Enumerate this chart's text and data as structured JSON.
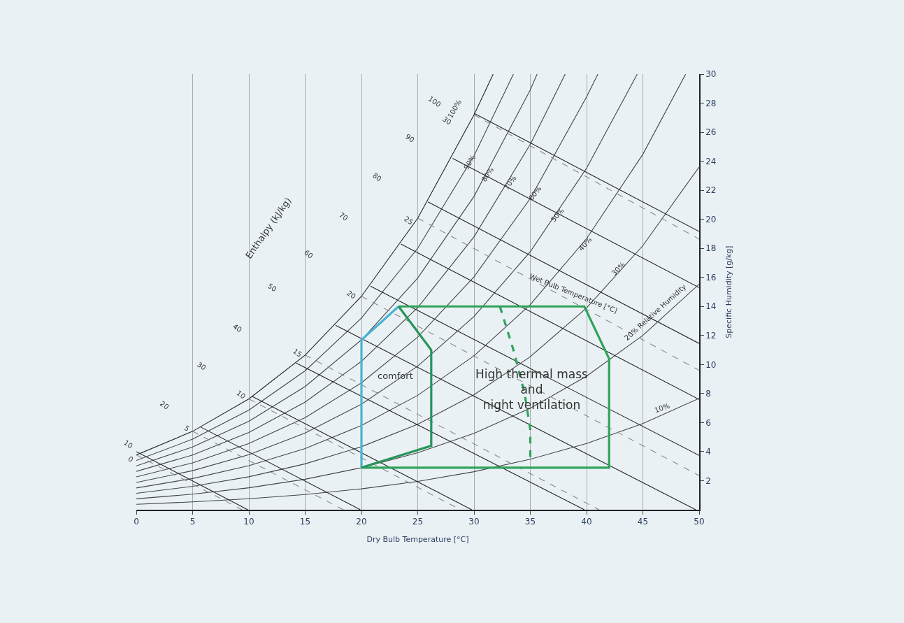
{
  "chart_data": {
    "type": "line",
    "xlabel": "Dry Bulb Temperature [°C]",
    "ylabel": "Specific Humidity [g/kg]",
    "xlim": [
      0,
      50
    ],
    "xticks": [
      0,
      5,
      10,
      15,
      20,
      25,
      30,
      35,
      40,
      45,
      50
    ],
    "ylim": [
      0,
      30
    ],
    "yticks": [
      2,
      4,
      6,
      8,
      10,
      12,
      14,
      16,
      18,
      20,
      22,
      24,
      26,
      28,
      30
    ],
    "grid": "x",
    "marker": "none",
    "series": [
      {
        "color": "#222222",
        "x": [
          0,
          5,
          10,
          15,
          20,
          25,
          30,
          31.7
        ],
        "values": [
          3.77,
          5.4,
          7.63,
          10.65,
          14.7,
          20.08,
          27.2,
          30.0
        ]
      },
      {
        "color": "#444444",
        "x": [
          0,
          5,
          10,
          15,
          20,
          25,
          30,
          33.5
        ],
        "values": [
          3.39,
          4.86,
          6.86,
          9.57,
          13.2,
          18.01,
          24.38,
          30.0
        ]
      },
      {
        "color": "#444444",
        "x": [
          0,
          5,
          10,
          15,
          20,
          25,
          30,
          35,
          35.6
        ],
        "values": [
          3.02,
          4.32,
          6.09,
          8.49,
          11.7,
          15.96,
          21.58,
          28.92,
          30.0
        ]
      },
      {
        "color": "#444444",
        "x": [
          0,
          5,
          10,
          15,
          20,
          25,
          30,
          35,
          38.1
        ],
        "values": [
          2.64,
          3.77,
          5.32,
          7.42,
          10.22,
          13.92,
          18.8,
          25.17,
          30.0
        ]
      },
      {
        "color": "#444444",
        "x": [
          0,
          5,
          10,
          15,
          20,
          25,
          30,
          35,
          40,
          41.0
        ],
        "values": [
          2.26,
          3.23,
          4.56,
          6.34,
          8.74,
          11.89,
          16.04,
          21.44,
          28.44,
          30.0
        ]
      },
      {
        "color": "#444444",
        "x": [
          0,
          5,
          10,
          15,
          20,
          25,
          30,
          35,
          40,
          44.5
        ],
        "values": [
          1.88,
          2.69,
          3.79,
          5.28,
          7.27,
          9.89,
          13.31,
          17.77,
          23.52,
          30.0
        ]
      },
      {
        "color": "#444444",
        "x": [
          0,
          5,
          10,
          15,
          20,
          25,
          30,
          35,
          40,
          45,
          48.8
        ],
        "values": [
          1.5,
          2.15,
          3.03,
          4.21,
          5.8,
          7.88,
          10.6,
          14.13,
          18.67,
          24.48,
          30.0
        ]
      },
      {
        "color": "#444444",
        "x": [
          0,
          5,
          10,
          15,
          20,
          25,
          30,
          35,
          40,
          45,
          50
        ],
        "values": [
          1.13,
          1.61,
          2.27,
          3.16,
          4.34,
          5.89,
          7.92,
          10.54,
          13.9,
          18.19,
          23.61
        ]
      },
      {
        "color": "#444444",
        "x": [
          0,
          5,
          10,
          15,
          20,
          25,
          30,
          35,
          40,
          45,
          50
        ],
        "values": [
          0.75,
          1.07,
          1.51,
          2.1,
          2.89,
          3.92,
          5.26,
          6.99,
          9.2,
          12.01,
          15.54
        ]
      },
      {
        "color": "#444444",
        "x": [
          0,
          5,
          10,
          15,
          20,
          25,
          30,
          35,
          40,
          45,
          50
        ],
        "values": [
          0.37,
          0.54,
          0.76,
          1.05,
          1.44,
          1.95,
          2.62,
          3.48,
          4.56,
          5.94,
          7.67
        ]
      },
      {
        "color": "#222222",
        "x": [
          0,
          9.9
        ],
        "values": [
          4.0,
          0
        ]
      },
      {
        "color": "#222222",
        "x": [
          5.7,
          19.9
        ],
        "values": [
          5.7,
          0
        ]
      },
      {
        "color": "#222222",
        "x": [
          10.3,
          29.8
        ],
        "values": [
          7.8,
          0
        ]
      },
      {
        "color": "#222222",
        "x": [
          14.2,
          39.8
        ],
        "values": [
          10.1,
          0
        ]
      },
      {
        "color": "#222222",
        "x": [
          17.7,
          49.7
        ],
        "values": [
          12.7,
          0
        ]
      },
      {
        "color": "#222222",
        "x": [
          20.8,
          50
        ],
        "values": [
          15.4,
          3.74
        ]
      },
      {
        "color": "#222222",
        "x": [
          23.5,
          50
        ],
        "values": [
          18.3,
          7.59
        ]
      },
      {
        "color": "#222222",
        "x": [
          25.9,
          50
        ],
        "values": [
          21.2,
          11.45
        ]
      },
      {
        "color": "#222222",
        "x": [
          28.1,
          50
        ],
        "values": [
          24.2,
          15.3
        ]
      },
      {
        "color": "#222222",
        "x": [
          30,
          50
        ],
        "values": [
          27.3,
          19.16
        ]
      },
      {
        "color": "#888888",
        "line_style": "dashed",
        "x": [
          0,
          9.4
        ],
        "values": [
          3.77,
          0
        ]
      },
      {
        "color": "#888888",
        "line_style": "dashed",
        "x": [
          5,
          18.4
        ],
        "values": [
          5.4,
          0
        ]
      },
      {
        "color": "#888888",
        "line_style": "dashed",
        "x": [
          10,
          28.8
        ],
        "values": [
          7.63,
          0
        ]
      },
      {
        "color": "#888888",
        "line_style": "dashed",
        "x": [
          15,
          41.1
        ],
        "values": [
          10.65,
          0
        ]
      },
      {
        "color": "#888888",
        "line_style": "dashed",
        "x": [
          20,
          50
        ],
        "values": [
          14.7,
          2.35
        ]
      },
      {
        "color": "#888888",
        "line_style": "dashed",
        "x": [
          25,
          50
        ],
        "values": [
          20.08,
          9.6
        ]
      },
      {
        "color": "#888888",
        "line_style": "dashed",
        "x": [
          30,
          50
        ],
        "values": [
          27.2,
          18.64
        ]
      },
      {
        "color": "#2fa35a",
        "x": [
          23.3,
          39.8,
          42,
          42,
          20
        ],
        "values": [
          14.0,
          14.0,
          10.4,
          2.9,
          2.9
        ]
      },
      {
        "color": "#2fa35a",
        "line_style": "dashed",
        "x": [
          32.3,
          33.5,
          34.5,
          35,
          35
        ],
        "values": [
          14.0,
          11.0,
          8.0,
          5.5,
          3.5
        ]
      },
      {
        "color": "#4ab3d6",
        "x": [
          20,
          20,
          23.3
        ],
        "values": [
          2.9,
          11.7,
          14.0
        ]
      },
      {
        "color": "#27955a",
        "x": [
          23.3,
          26.2,
          26.2,
          20
        ],
        "values": [
          14.0,
          11.0,
          4.4,
          2.9
        ]
      }
    ],
    "annotations": [
      "100%",
      "90%",
      "80%",
      "70%",
      "60%",
      "50%",
      "40%",
      "30%",
      "20% Relative Humidity",
      "10%",
      "Wet Bulb Temperature [°C]",
      "30",
      "25",
      "20",
      "15",
      "10",
      "5",
      "0",
      "10",
      "20",
      "30",
      "40",
      "50",
      "60",
      "70",
      "80",
      "90",
      "100",
      "Enthalpy (kJ/kg)",
      "comfort",
      "High thermal mass\nand\nnight ventilation"
    ]
  }
}
